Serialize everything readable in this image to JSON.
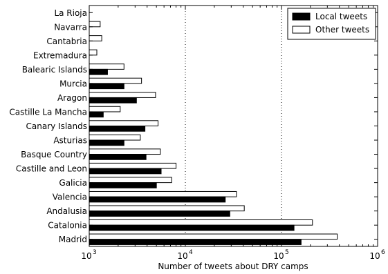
{
  "chart_data": {
    "type": "bar",
    "orientation": "horizontal",
    "xscale": "log",
    "xlim": [
      1000,
      1000000
    ],
    "xlabel": "Number of tweets about DRY camps",
    "grid": "dotted vertical",
    "legend_position": "top-right",
    "categories": [
      "Madrid",
      "Catalonia",
      "Andalusia",
      "Valencia",
      "Galicia",
      "Castille and Leon",
      "Basque Country",
      "Asturias",
      "Canary Islands",
      "Castille La Mancha",
      "Aragon",
      "Murcia",
      "Balearic Islands",
      "Extremadura",
      "Cantabria",
      "Navarra",
      "La Rioja"
    ],
    "series": [
      {
        "name": "Local tweets",
        "color": "#000000",
        "values": [
          160000,
          135000,
          29000,
          26000,
          5000,
          5600,
          3900,
          2300,
          3800,
          1400,
          3100,
          2300,
          1550,
          null,
          null,
          null,
          null
        ]
      },
      {
        "name": "Other tweets",
        "color": "#ffffff",
        "values": [
          380000,
          210000,
          41000,
          34000,
          7200,
          8000,
          5500,
          3400,
          5200,
          2100,
          4900,
          3500,
          2300,
          1200,
          1350,
          1300,
          null
        ]
      }
    ],
    "xticks": [
      {
        "base": "10",
        "exp": "3"
      },
      {
        "base": "10",
        "exp": "4"
      },
      {
        "base": "10",
        "exp": "5"
      },
      {
        "base": "10",
        "exp": "6"
      }
    ]
  }
}
